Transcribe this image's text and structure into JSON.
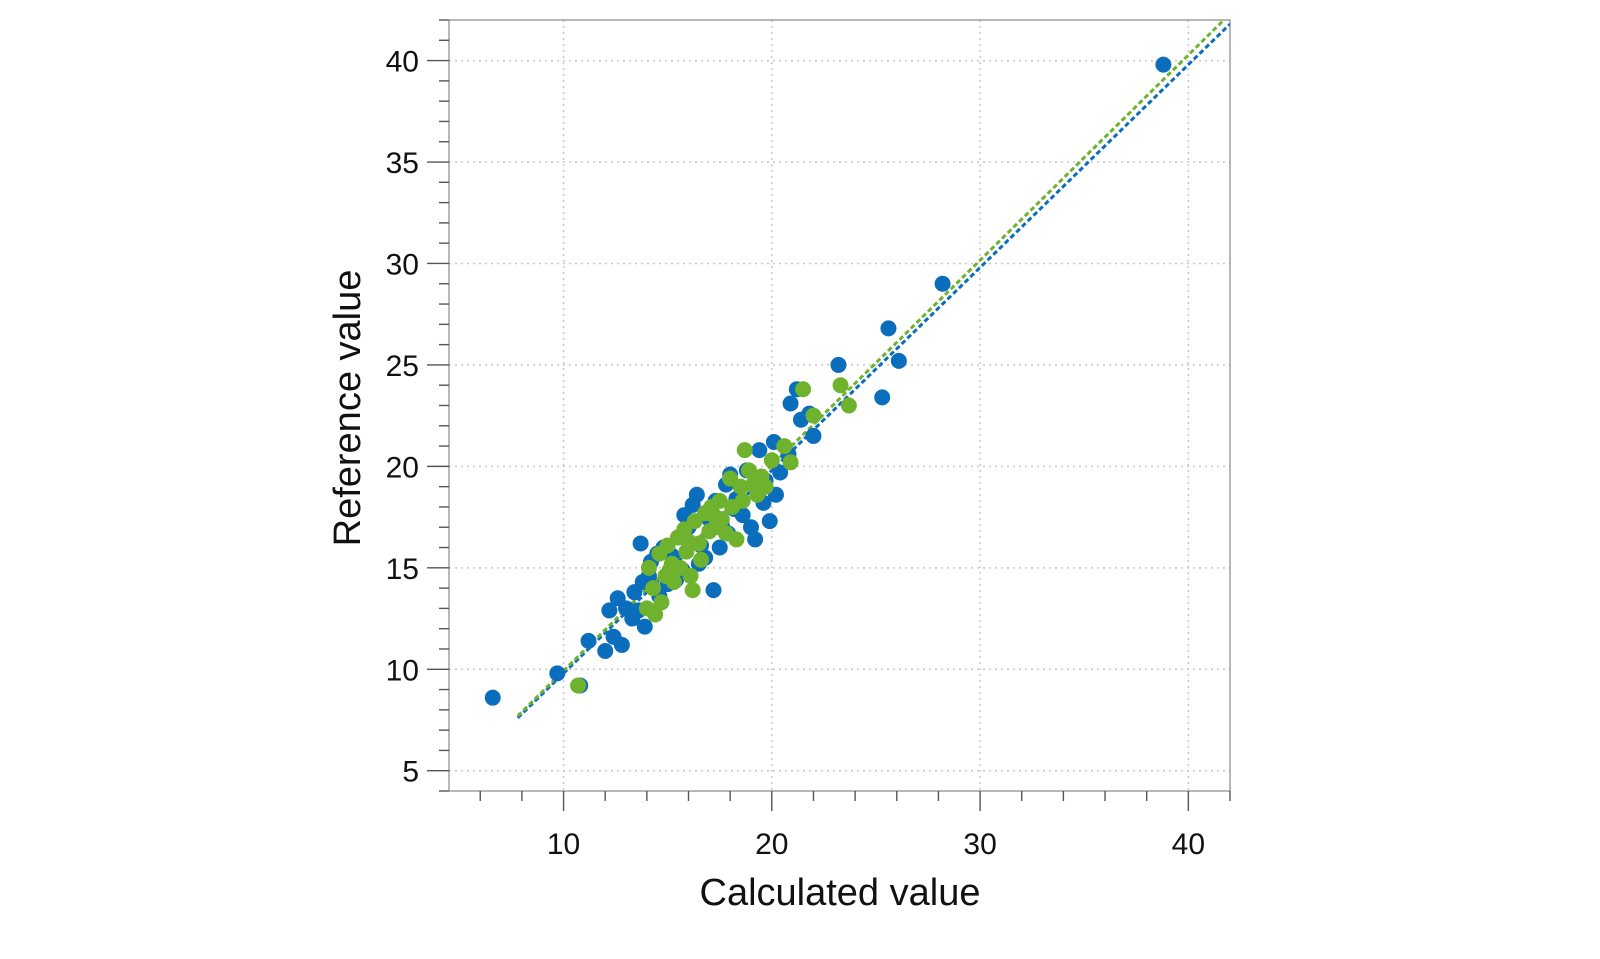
{
  "chart_data": {
    "type": "scatter",
    "xlabel": "Calculated value",
    "ylabel": "Reference value",
    "xlim": [
      4.5,
      42
    ],
    "ylim": [
      4,
      42
    ],
    "x_ticks": [
      10,
      20,
      30,
      40
    ],
    "y_ticks": [
      5,
      10,
      15,
      20,
      25,
      30,
      35,
      40
    ],
    "grid": true,
    "grid_style": "dotted",
    "colors": {
      "blue": "#0a6ebd",
      "green": "#6fb22e"
    },
    "series": [
      {
        "color": "#0a6ebd",
        "fit_line": {
          "x": [
            7.8,
            42
          ],
          "y": [
            7.6,
            41.8
          ]
        },
        "points": [
          [
            6.6,
            8.6
          ],
          [
            9.7,
            9.8
          ],
          [
            10.8,
            9.2
          ],
          [
            11.2,
            11.4
          ],
          [
            12.0,
            10.9
          ],
          [
            12.4,
            11.6
          ],
          [
            12.8,
            11.2
          ],
          [
            12.2,
            12.9
          ],
          [
            12.6,
            13.5
          ],
          [
            13.0,
            13.0
          ],
          [
            13.3,
            12.5
          ],
          [
            13.6,
            12.9
          ],
          [
            13.9,
            12.1
          ],
          [
            13.4,
            13.8
          ],
          [
            13.8,
            14.3
          ],
          [
            14.1,
            14.6
          ],
          [
            13.7,
            16.2
          ],
          [
            14.2,
            15.3
          ],
          [
            14.5,
            15.7
          ],
          [
            14.8,
            16.0
          ],
          [
            15.0,
            14.2
          ],
          [
            15.2,
            15.6
          ],
          [
            15.5,
            16.5
          ],
          [
            15.7,
            14.9
          ],
          [
            16.0,
            17.0
          ],
          [
            15.8,
            17.6
          ],
          [
            16.2,
            18.1
          ],
          [
            16.4,
            18.6
          ],
          [
            16.6,
            16.1
          ],
          [
            16.8,
            15.5
          ],
          [
            17.0,
            17.4
          ],
          [
            17.2,
            13.9
          ],
          [
            17.3,
            18.3
          ],
          [
            17.6,
            17.1
          ],
          [
            17.8,
            19.1
          ],
          [
            18.0,
            19.6
          ],
          [
            17.5,
            16.0
          ],
          [
            18.3,
            18.4
          ],
          [
            18.6,
            17.6
          ],
          [
            18.8,
            19.8
          ],
          [
            19.0,
            17.0
          ],
          [
            19.2,
            16.4
          ],
          [
            19.4,
            20.8
          ],
          [
            19.6,
            18.2
          ],
          [
            19.9,
            17.3
          ],
          [
            20.1,
            21.2
          ],
          [
            20.4,
            19.7
          ],
          [
            20.8,
            20.6
          ],
          [
            20.2,
            18.6
          ],
          [
            20.9,
            23.1
          ],
          [
            21.2,
            23.8
          ],
          [
            21.4,
            22.3
          ],
          [
            21.8,
            22.6
          ],
          [
            22.0,
            21.5
          ],
          [
            23.2,
            25.0
          ],
          [
            25.3,
            23.4
          ],
          [
            25.6,
            26.8
          ],
          [
            26.1,
            25.2
          ],
          [
            28.2,
            29.0
          ],
          [
            38.8,
            39.8
          ],
          [
            14.6,
            13.6
          ],
          [
            15.4,
            14.4
          ],
          [
            16.5,
            15.2
          ],
          [
            17.9,
            16.7
          ],
          [
            18.2,
            17.9
          ],
          [
            19.7,
            19.3
          ]
        ]
      },
      {
        "color": "#6fb22e",
        "fit_line": {
          "x": [
            7.8,
            42
          ],
          "y": [
            7.7,
            42.3
          ]
        },
        "points": [
          [
            10.7,
            9.2
          ],
          [
            14.0,
            13.0
          ],
          [
            14.1,
            15.0
          ],
          [
            14.3,
            14.0
          ],
          [
            14.4,
            12.7
          ],
          [
            14.6,
            15.7
          ],
          [
            14.7,
            13.3
          ],
          [
            14.9,
            14.6
          ],
          [
            15.0,
            16.1
          ],
          [
            15.2,
            15.2
          ],
          [
            15.3,
            14.3
          ],
          [
            15.5,
            16.5
          ],
          [
            15.6,
            15.0
          ],
          [
            15.8,
            16.9
          ],
          [
            15.9,
            15.8
          ],
          [
            16.1,
            14.6
          ],
          [
            16.2,
            13.9
          ],
          [
            16.3,
            17.3
          ],
          [
            16.5,
            16.2
          ],
          [
            16.6,
            15.4
          ],
          [
            16.8,
            17.7
          ],
          [
            17.0,
            16.8
          ],
          [
            17.1,
            18.0
          ],
          [
            17.3,
            17.0
          ],
          [
            17.5,
            18.3
          ],
          [
            17.6,
            17.4
          ],
          [
            17.8,
            16.7
          ],
          [
            18.0,
            19.4
          ],
          [
            18.1,
            18.0
          ],
          [
            18.3,
            16.4
          ],
          [
            18.5,
            19.0
          ],
          [
            18.6,
            18.3
          ],
          [
            18.7,
            20.8
          ],
          [
            18.9,
            19.8
          ],
          [
            19.1,
            19.1
          ],
          [
            19.3,
            18.6
          ],
          [
            19.5,
            19.5
          ],
          [
            19.7,
            19.0
          ],
          [
            20.0,
            20.3
          ],
          [
            20.6,
            21.0
          ],
          [
            20.9,
            20.2
          ],
          [
            21.5,
            23.8
          ],
          [
            22.0,
            22.5
          ],
          [
            23.3,
            24.0
          ],
          [
            23.7,
            23.0
          ],
          [
            15.1,
            14.9
          ],
          [
            16.0,
            16.3
          ],
          [
            17.2,
            17.6
          ]
        ]
      }
    ]
  }
}
